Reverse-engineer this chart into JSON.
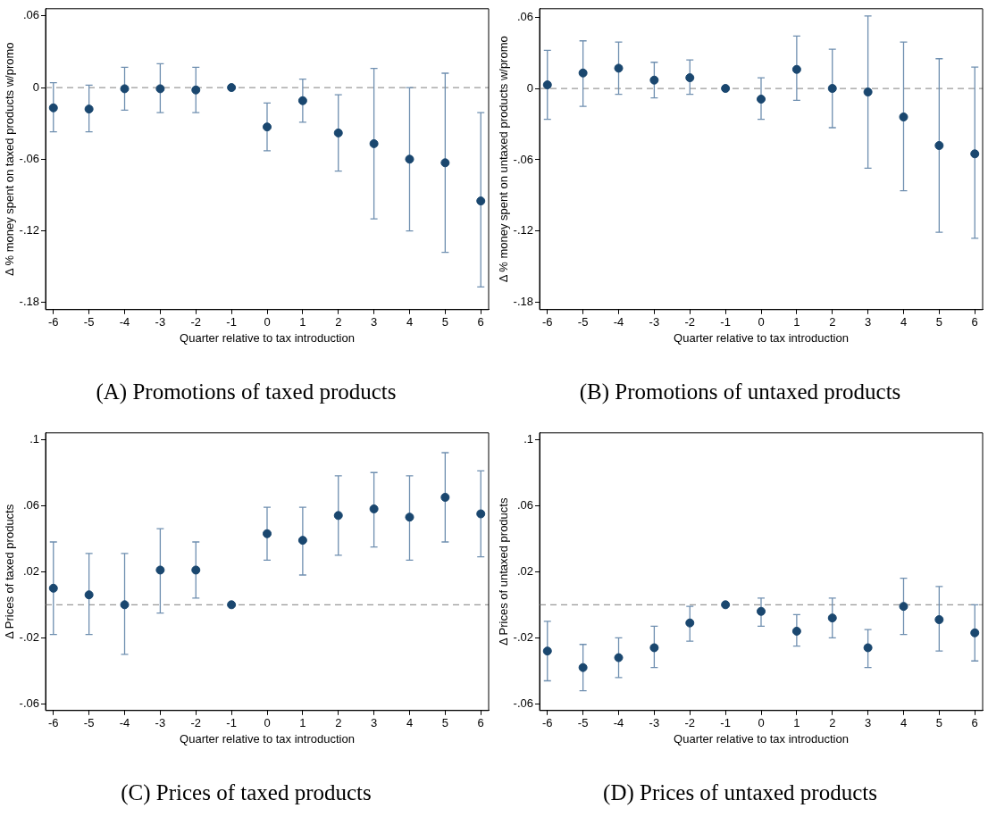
{
  "chart_data": [
    {
      "type": "scatter",
      "title": "(A) Promotions of taxed products",
      "xlabel": "Quarter relative to tax introduction",
      "ylabel": "Δ % money spent on taxed products w/promo",
      "color": "#1a476f",
      "marker": "circle",
      "grid": false,
      "legend": false,
      "x": [
        -6,
        -5,
        -4,
        -3,
        -2,
        -1,
        0,
        1,
        2,
        3,
        4,
        5,
        6
      ],
      "values": [
        -0.017,
        -0.018,
        -0.001,
        -0.001,
        -0.002,
        0,
        -0.033,
        -0.011,
        -0.038,
        -0.047,
        -0.06,
        -0.063,
        -0.095
      ],
      "errors": [
        [
          -0.037,
          0.004
        ],
        [
          -0.037,
          0.002
        ],
        [
          -0.019,
          0.017
        ],
        [
          -0.021,
          0.02
        ],
        [
          -0.021,
          0.017
        ],
        null,
        [
          -0.053,
          -0.013
        ],
        [
          -0.029,
          0.007
        ],
        [
          -0.07,
          -0.006
        ],
        [
          -0.11,
          0.016
        ],
        [
          -0.12,
          0
        ],
        [
          -0.138,
          0.012
        ],
        [
          -0.167,
          -0.021
        ]
      ],
      "xlim": [
        -6.22,
        6.22
      ],
      "xticks": [
        -6,
        -5,
        -4,
        -3,
        -2,
        -1,
        0,
        1,
        2,
        3,
        4,
        5,
        6
      ],
      "ylim": [
        -0.186,
        0.066
      ],
      "yticks": [
        {
          "value": -0.18,
          "label": "-.18"
        },
        {
          "value": -0.12,
          "label": "-.12"
        },
        {
          "value": -0.06,
          "label": "-.06"
        },
        0,
        {
          "value": 0.06,
          "label": ".06"
        }
      ],
      "ref_lines": [
        {
          "axis": "y",
          "value": 0,
          "color": "#999999",
          "line_style": "dashed"
        }
      ]
    },
    {
      "type": "scatter",
      "title": "(B) Promotions of untaxed products",
      "xlabel": "Quarter relative to tax introduction",
      "ylabel": "Δ % money spent on untaxed products w/promo",
      "color": "#1a476f",
      "marker": "circle",
      "grid": false,
      "legend": false,
      "x": [
        -6,
        -5,
        -4,
        -3,
        -2,
        -1,
        0,
        1,
        2,
        3,
        4,
        5,
        6
      ],
      "values": [
        0.003,
        0.013,
        0.017,
        0.007,
        0.009,
        0,
        -0.009,
        0.016,
        0,
        -0.003,
        -0.024,
        -0.048,
        -0.055
      ],
      "errors": [
        [
          -0.026,
          0.032
        ],
        [
          -0.015,
          0.04
        ],
        [
          -0.005,
          0.039
        ],
        [
          -0.008,
          0.022
        ],
        [
          -0.005,
          0.024
        ],
        null,
        [
          -0.026,
          0.009
        ],
        [
          -0.01,
          0.044
        ],
        [
          -0.033,
          0.033
        ],
        [
          -0.067,
          0.061
        ],
        [
          -0.086,
          0.039
        ],
        [
          -0.121,
          0.025
        ],
        [
          -0.126,
          0.018
        ]
      ],
      "xlim": [
        -6.22,
        6.22
      ],
      "xticks": [
        -6,
        -5,
        -4,
        -3,
        -2,
        -1,
        0,
        1,
        2,
        3,
        4,
        5,
        6
      ],
      "ylim": [
        -0.186,
        0.067
      ],
      "yticks": [
        {
          "value": -0.18,
          "label": "-.18"
        },
        {
          "value": -0.12,
          "label": "-.12"
        },
        {
          "value": -0.06,
          "label": "-.06"
        },
        0,
        {
          "value": 0.06,
          "label": ".06"
        }
      ],
      "ref_lines": [
        {
          "axis": "y",
          "value": 0,
          "color": "#999999",
          "line_style": "dashed"
        }
      ]
    },
    {
      "type": "scatter",
      "title": "(C) Prices of taxed products",
      "xlabel": "Quarter relative to tax introduction",
      "ylabel": "Δ Prices of taxed products",
      "color": "#1a476f",
      "marker": "circle",
      "grid": false,
      "legend": false,
      "x": [
        -6,
        -5,
        -4,
        -3,
        -2,
        -1,
        0,
        1,
        2,
        3,
        4,
        5,
        6
      ],
      "values": [
        0.01,
        0.006,
        0,
        0.021,
        0.021,
        0,
        0.043,
        0.039,
        0.054,
        0.058,
        0.053,
        0.065,
        0.055
      ],
      "errors": [
        [
          -0.018,
          0.038
        ],
        [
          -0.018,
          0.031
        ],
        [
          -0.03,
          0.031
        ],
        [
          -0.005,
          0.046
        ],
        [
          0.004,
          0.038
        ],
        null,
        [
          0.027,
          0.059
        ],
        [
          0.018,
          0.059
        ],
        [
          0.03,
          0.078
        ],
        [
          0.035,
          0.08
        ],
        [
          0.027,
          0.078
        ],
        [
          0.038,
          0.092
        ],
        [
          0.029,
          0.081
        ]
      ],
      "xlim": [
        -6.22,
        6.22
      ],
      "xticks": [
        -6,
        -5,
        -4,
        -3,
        -2,
        -1,
        0,
        1,
        2,
        3,
        4,
        5,
        6
      ],
      "ylim": [
        -0.064,
        0.104
      ],
      "yticks": [
        {
          "value": -0.06,
          "label": "-.06"
        },
        {
          "value": -0.02,
          "label": "-.02"
        },
        {
          "value": 0.02,
          "label": ".02"
        },
        {
          "value": 0.06,
          "label": ".06"
        },
        {
          "value": 0.1,
          "label": ".1"
        }
      ],
      "ref_lines": [
        {
          "axis": "y",
          "value": 0,
          "color": "#999999",
          "line_style": "dashed"
        }
      ]
    },
    {
      "type": "scatter",
      "title": "(D) Prices of untaxed products",
      "xlabel": "Quarter relative to tax introduction",
      "ylabel": "Δ Prices of untaxed products",
      "color": "#1a476f",
      "marker": "circle",
      "grid": false,
      "legend": false,
      "x": [
        -6,
        -5,
        -4,
        -3,
        -2,
        -1,
        0,
        1,
        2,
        3,
        4,
        5,
        6
      ],
      "values": [
        -0.028,
        -0.038,
        -0.032,
        -0.026,
        -0.011,
        0,
        -0.004,
        -0.016,
        -0.008,
        -0.026,
        -0.001,
        -0.009,
        -0.017
      ],
      "errors": [
        [
          -0.046,
          -0.01
        ],
        [
          -0.052,
          -0.024
        ],
        [
          -0.044,
          -0.02
        ],
        [
          -0.038,
          -0.013
        ],
        [
          -0.022,
          -0.001
        ],
        null,
        [
          -0.013,
          0.004
        ],
        [
          -0.025,
          -0.006
        ],
        [
          -0.02,
          0.004
        ],
        [
          -0.038,
          -0.015
        ],
        [
          -0.018,
          0.016
        ],
        [
          -0.028,
          0.011
        ],
        [
          -0.034,
          0
        ]
      ],
      "xlim": [
        -6.22,
        6.22
      ],
      "xticks": [
        -6,
        -5,
        -4,
        -3,
        -2,
        -1,
        0,
        1,
        2,
        3,
        4,
        5,
        6
      ],
      "ylim": [
        -0.064,
        0.104
      ],
      "yticks": [
        {
          "value": -0.06,
          "label": "-.06"
        },
        {
          "value": -0.02,
          "label": "-.02"
        },
        {
          "value": 0.02,
          "label": ".02"
        },
        {
          "value": 0.06,
          "label": ".06"
        },
        {
          "value": 0.1,
          "label": ".1"
        }
      ],
      "ref_lines": [
        {
          "axis": "y",
          "value": 0,
          "color": "#999999",
          "line_style": "dashed"
        }
      ]
    }
  ]
}
